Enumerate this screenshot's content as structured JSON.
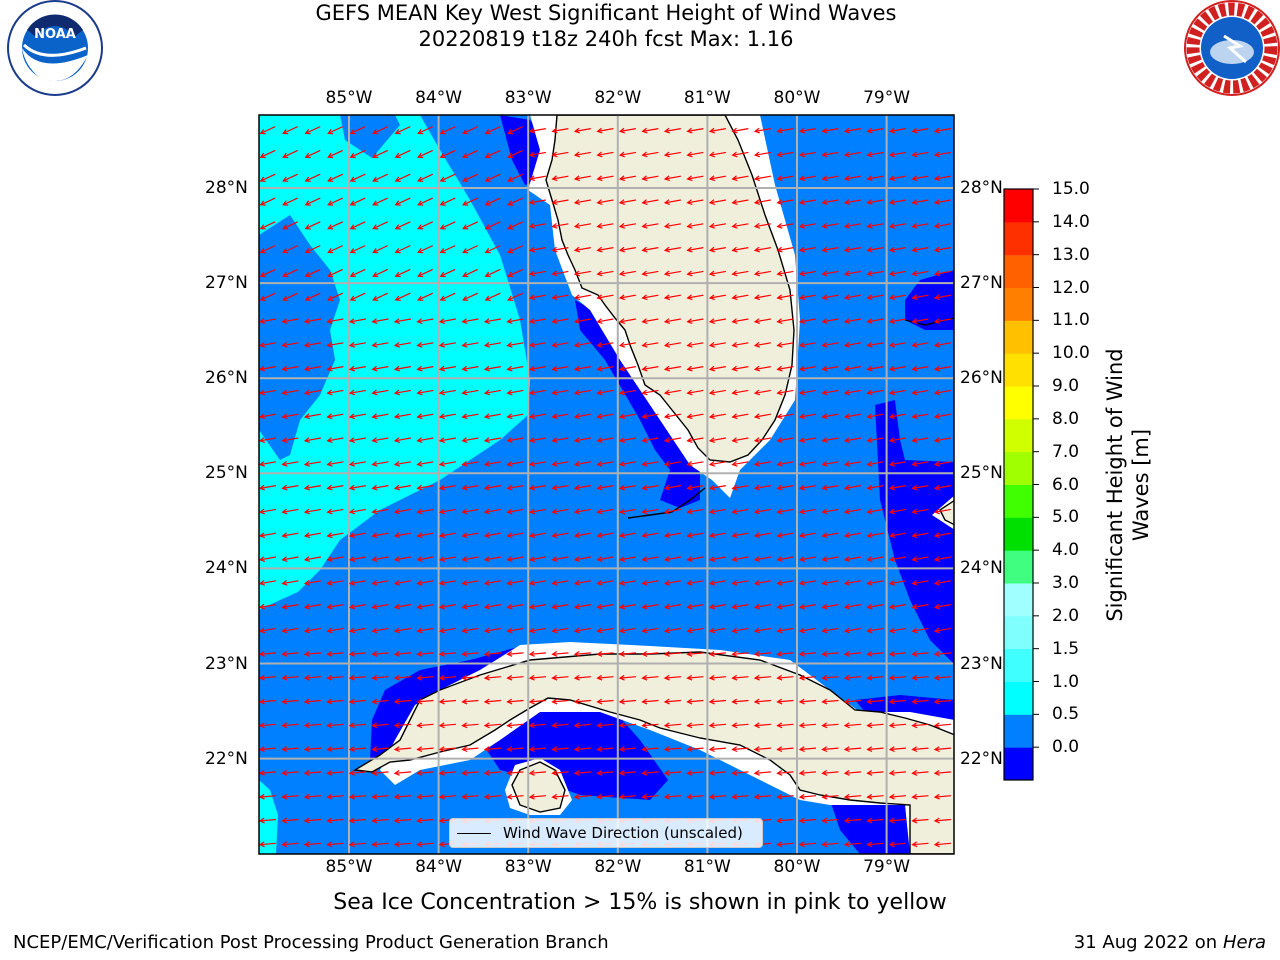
{
  "title": {
    "line1": "GEFS MEAN Key West Significant Height of Wind Waves",
    "line2": "20220819 t18z 240h fcst   Max: 1.16"
  },
  "logos": {
    "left": "NOAA",
    "left_ring": "NATIONAL OCEANIC AND ATMOSPHERIC ADMINISTRATION · U.S. DEPARTMENT OF COMMERCE",
    "right_ring": "NATIONAL WEATHER SERVICE"
  },
  "axes": {
    "lon_ticks": [
      "85°W",
      "84°W",
      "83°W",
      "82°W",
      "81°W",
      "80°W",
      "79°W"
    ],
    "lat_ticks": [
      "28°N",
      "27°N",
      "26°N",
      "25°N",
      "24°N",
      "23°N",
      "22°N"
    ],
    "lon_range": [
      -86.0,
      -78.3
    ],
    "lat_range": [
      21.0,
      28.8
    ],
    "grid": true
  },
  "legend": {
    "label": "Wind Wave Direction (unscaled)"
  },
  "colorbar": {
    "label": "Significant Height of Wind Waves [m]",
    "ticks": [
      "15.0",
      "14.0",
      "13.0",
      "12.0",
      "11.0",
      "10.0",
      "9.0",
      "8.0",
      "7.0",
      "6.0",
      "5.0",
      "4.0",
      "3.0",
      "2.0",
      "1.5",
      "1.0",
      "0.5",
      "0.0"
    ],
    "colors_bottom_to_top": [
      "#0000ff",
      "#0080ff",
      "#00ffff",
      "#40ffff",
      "#80ffff",
      "#a0ffff",
      "#40ff80",
      "#00e000",
      "#40ff00",
      "#a0ff00",
      "#d0ff00",
      "#ffff00",
      "#ffe000",
      "#ffc000",
      "#ff8000",
      "#ff6000",
      "#ff3000",
      "#ff0000"
    ]
  },
  "field_colors": {
    "band_0_0p5": "#0000ff",
    "band_0p5_1": "#0080ff",
    "band_1_1p5": "#00ffff",
    "land": "#efefdc",
    "arrow": "#ff0000",
    "grid": "#b0b0b0"
  },
  "subtitle": "Sea Ice Concentration > 15% is shown in pink to yellow",
  "footer": {
    "left": "NCEP/EMC/Verification Post Processing Product Generation Branch",
    "right_date": "31 Aug 2022 on",
    "right_host": "Hera"
  }
}
